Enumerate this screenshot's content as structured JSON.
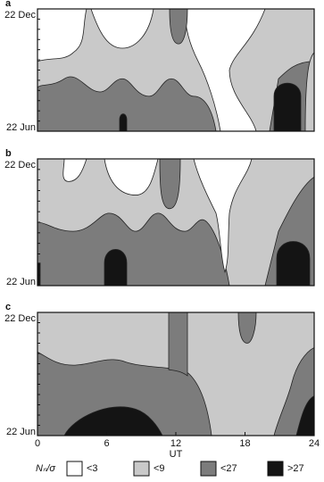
{
  "chart_data": [
    {
      "type": "contour",
      "title": "a",
      "ylabels": [
        "22 Dec",
        "22 Jun"
      ]
    },
    {
      "type": "contour",
      "title": "b",
      "ylabels": [
        "22 Dec",
        "22 Jun"
      ]
    },
    {
      "type": "contour",
      "title": "c",
      "ylabels": [
        "22 Dec",
        "22 Jun"
      ],
      "xlim": [
        0,
        24
      ],
      "xticks": [
        0,
        6,
        12,
        18,
        24
      ],
      "xlabel": "UT"
    }
  ],
  "legend": {
    "title": "Nₙ/σ",
    "items": [
      {
        "label": "<3",
        "color": "#ffffff"
      },
      {
        "label": "<9",
        "color": "#c9c9c9"
      },
      {
        "label": "<27",
        "color": "#7c7c7c"
      },
      {
        "label": ">27",
        "color": "#141414"
      }
    ]
  }
}
